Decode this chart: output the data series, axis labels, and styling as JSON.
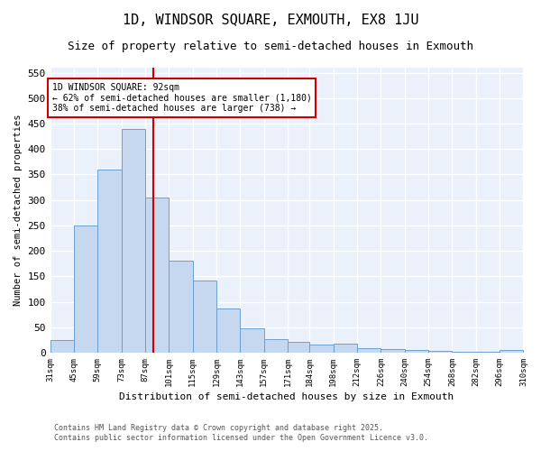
{
  "title": "1D, WINDSOR SQUARE, EXMOUTH, EX8 1JU",
  "subtitle": "Size of property relative to semi-detached houses in Exmouth",
  "xlabel": "Distribution of semi-detached houses by size in Exmouth",
  "ylabel": "Number of semi-detached properties",
  "bar_edges": [
    31,
    45,
    59,
    73,
    87,
    101,
    115,
    129,
    143,
    157,
    171,
    184,
    198,
    212,
    226,
    240,
    254,
    268,
    282,
    296,
    310
  ],
  "bar_heights": [
    24,
    250,
    360,
    440,
    305,
    180,
    142,
    86,
    48,
    27,
    22,
    16,
    18,
    9,
    7,
    6,
    4,
    2,
    1,
    5
  ],
  "bar_color": "#C5D8F0",
  "bar_edge_color": "#6CA0D0",
  "property_size": 92,
  "vline_color": "#CC0000",
  "annotation_title": "1D WINDSOR SQUARE: 92sqm",
  "annotation_line1": "← 62% of semi-detached houses are smaller (1,180)",
  "annotation_line2": "38% of semi-detached houses are larger (738) →",
  "annotation_box_color": "#CC0000",
  "ylim": [
    0,
    560
  ],
  "yticks": [
    0,
    50,
    100,
    150,
    200,
    250,
    300,
    350,
    400,
    450,
    500,
    550
  ],
  "footnote1": "Contains HM Land Registry data © Crown copyright and database right 2025.",
  "footnote2": "Contains public sector information licensed under the Open Government Licence v3.0.",
  "bg_color": "#EBF1FA",
  "grid_color": "#FFFFFF",
  "title_fontsize": 11,
  "subtitle_fontsize": 9
}
